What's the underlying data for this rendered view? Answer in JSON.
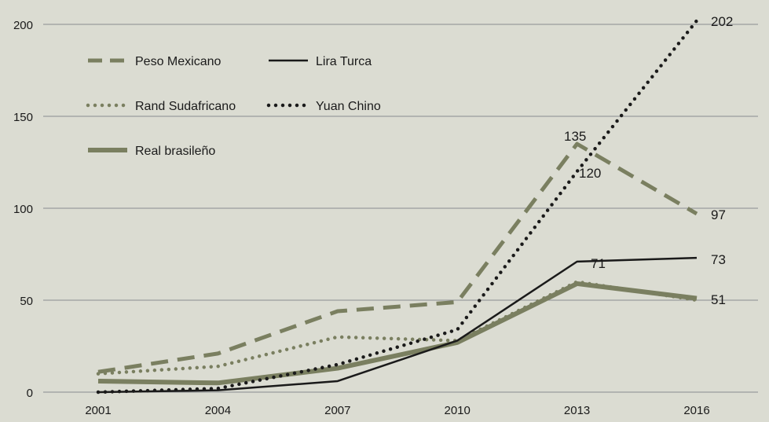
{
  "chart_data": {
    "type": "line",
    "title": "",
    "xlabel": "",
    "ylabel": "",
    "categories": [
      "2001",
      "2004",
      "2007",
      "2010",
      "2013",
      "2016"
    ],
    "ylim": [
      0,
      200
    ],
    "yticks": [
      0,
      50,
      100,
      150,
      200
    ],
    "grid": true,
    "legend_position": "top-left",
    "series": [
      {
        "name": "Peso Mexicano",
        "style": "dashed",
        "color": "#7a7f60",
        "values": [
          11,
          21,
          44,
          49,
          135,
          97
        ]
      },
      {
        "name": "Lira Turca",
        "style": "solid-thin",
        "color": "#1a1a1a",
        "values": [
          0,
          1,
          6,
          28,
          71,
          73
        ]
      },
      {
        "name": "Rand Sudafricano",
        "style": "dotted",
        "color": "#7a7f60",
        "values": [
          10,
          14,
          30,
          28,
          60,
          50
        ]
      },
      {
        "name": "Yuan Chino",
        "style": "dotted",
        "color": "#1a1a1a",
        "values": [
          0,
          2,
          15,
          34,
          120,
          202
        ]
      },
      {
        "name": "Real brasileño",
        "style": "solid-thick",
        "color": "#7a7f60",
        "values": [
          6,
          5,
          13,
          27,
          59,
          51
        ]
      }
    ],
    "annotations": [
      "202",
      "135",
      "120",
      "97",
      "73",
      "71",
      "51"
    ]
  }
}
